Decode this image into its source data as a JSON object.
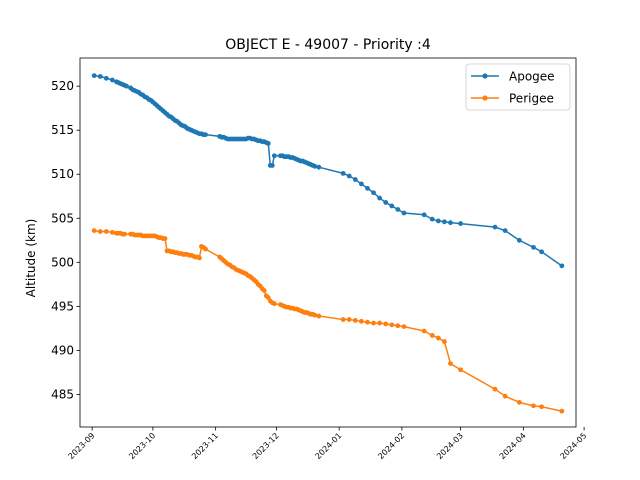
{
  "chart_data": {
    "type": "line",
    "title": "OBJECT E - 49007 - Priority :4",
    "xlabel": "",
    "ylabel": "Altitude (km)",
    "ylim": [
      481.3,
      523.2
    ],
    "xlim": [
      "2023-08-26",
      "2024-04-27"
    ],
    "grid": false,
    "legend_position": "top-right",
    "x_ticks": [
      "2023-09",
      "2023-10",
      "2023-11",
      "2023-12",
      "2024-01",
      "2024-02",
      "2024-03",
      "2024-04",
      "2024-05"
    ],
    "y_ticks": [
      485,
      490,
      495,
      500,
      505,
      510,
      515,
      520
    ],
    "series": [
      {
        "name": "Apogee",
        "color": "#1f77b4",
        "x": [
          "2023-09-02",
          "2023-09-05",
          "2023-09-08",
          "2023-09-11",
          "2023-09-13",
          "2023-09-14",
          "2023-09-15",
          "2023-09-16",
          "2023-09-17",
          "2023-09-18",
          "2023-09-20",
          "2023-09-21",
          "2023-09-22",
          "2023-09-23",
          "2023-09-24",
          "2023-09-25",
          "2023-09-26",
          "2023-09-27",
          "2023-09-28",
          "2023-09-29",
          "2023-09-30",
          "2023-10-01",
          "2023-10-02",
          "2023-10-03",
          "2023-10-04",
          "2023-10-05",
          "2023-10-06",
          "2023-10-07",
          "2023-10-08",
          "2023-10-09",
          "2023-10-10",
          "2023-10-11",
          "2023-10-12",
          "2023-10-13",
          "2023-10-14",
          "2023-10-15",
          "2023-10-16",
          "2023-10-17",
          "2023-10-18",
          "2023-10-19",
          "2023-10-20",
          "2023-10-21",
          "2023-10-22",
          "2023-10-23",
          "2023-10-24",
          "2023-10-25",
          "2023-10-26",
          "2023-10-27",
          "2023-11-03",
          "2023-11-04",
          "2023-11-05",
          "2023-11-06",
          "2023-11-07",
          "2023-11-08",
          "2023-11-09",
          "2023-11-10",
          "2023-11-11",
          "2023-11-12",
          "2023-11-13",
          "2023-11-14",
          "2023-11-15",
          "2023-11-16",
          "2023-11-17",
          "2023-11-18",
          "2023-11-19",
          "2023-11-20",
          "2023-11-21",
          "2023-11-22",
          "2023-11-23",
          "2023-11-24",
          "2023-11-25",
          "2023-11-26",
          "2023-11-27",
          "2023-11-28",
          "2023-11-29",
          "2023-11-30",
          "2023-12-03",
          "2023-12-04",
          "2023-12-05",
          "2023-12-06",
          "2023-12-07",
          "2023-12-08",
          "2023-12-09",
          "2023-12-10",
          "2023-12-11",
          "2023-12-12",
          "2023-12-13",
          "2023-12-14",
          "2023-12-15",
          "2023-12-16",
          "2023-12-17",
          "2023-12-18",
          "2023-12-19",
          "2023-12-20",
          "2023-12-22",
          "2024-01-03",
          "2024-01-06",
          "2024-01-09",
          "2024-01-12",
          "2024-01-15",
          "2024-01-18",
          "2024-01-21",
          "2024-01-24",
          "2024-01-27",
          "2024-01-30",
          "2024-02-02",
          "2024-02-12",
          "2024-02-16",
          "2024-02-19",
          "2024-02-22",
          "2024-02-25",
          "2024-03-01",
          "2024-03-18",
          "2024-03-23",
          "2024-03-30",
          "2024-04-06",
          "2024-04-10",
          "2024-04-20"
        ],
        "y": [
          521.2,
          521.1,
          520.9,
          520.7,
          520.5,
          520.4,
          520.3,
          520.2,
          520.1,
          520.0,
          519.8,
          519.6,
          519.5,
          519.4,
          519.3,
          519.1,
          519.0,
          518.8,
          518.7,
          518.5,
          518.4,
          518.2,
          518.0,
          517.8,
          517.6,
          517.4,
          517.2,
          517.0,
          516.8,
          516.6,
          516.5,
          516.3,
          516.1,
          516.0,
          515.8,
          515.6,
          515.5,
          515.4,
          515.2,
          515.1,
          515.0,
          514.9,
          514.8,
          514.7,
          514.6,
          514.6,
          514.5,
          514.5,
          514.3,
          514.2,
          514.2,
          514.1,
          514.0,
          514.0,
          514.0,
          514.0,
          514.0,
          514.0,
          514.0,
          514.0,
          514.0,
          514.0,
          514.1,
          514.1,
          514.0,
          514.0,
          513.9,
          513.8,
          513.8,
          513.7,
          513.7,
          513.6,
          513.5,
          511.0,
          511.0,
          512.1,
          512.1,
          512.1,
          512.0,
          512.0,
          512.0,
          511.9,
          511.9,
          511.8,
          511.7,
          511.6,
          511.5,
          511.5,
          511.4,
          511.3,
          511.2,
          511.1,
          511.0,
          510.9,
          510.8,
          510.1,
          509.8,
          509.4,
          508.9,
          508.4,
          507.9,
          507.3,
          506.8,
          506.4,
          506.0,
          505.6,
          505.4,
          504.9,
          504.7,
          504.6,
          504.5,
          504.4,
          504.0,
          503.6,
          502.5,
          501.7,
          501.2,
          499.6
        ]
      },
      {
        "name": "Perigee",
        "color": "#ff7f0e",
        "x": [
          "2023-09-02",
          "2023-09-05",
          "2023-09-08",
          "2023-09-11",
          "2023-09-13",
          "2023-09-14",
          "2023-09-15",
          "2023-09-16",
          "2023-09-17",
          "2023-09-20",
          "2023-09-21",
          "2023-09-22",
          "2023-09-23",
          "2023-09-24",
          "2023-09-25",
          "2023-09-26",
          "2023-09-27",
          "2023-09-28",
          "2023-09-29",
          "2023-09-30",
          "2023-10-01",
          "2023-10-02",
          "2023-10-03",
          "2023-10-04",
          "2023-10-05",
          "2023-10-06",
          "2023-10-07",
          "2023-10-08",
          "2023-10-09",
          "2023-10-10",
          "2023-10-11",
          "2023-10-12",
          "2023-10-13",
          "2023-10-14",
          "2023-10-15",
          "2023-10-16",
          "2023-10-17",
          "2023-10-18",
          "2023-10-19",
          "2023-10-20",
          "2023-10-21",
          "2023-10-22",
          "2023-10-23",
          "2023-10-24",
          "2023-10-25",
          "2023-10-26",
          "2023-10-27",
          "2023-11-03",
          "2023-11-04",
          "2023-11-05",
          "2023-11-06",
          "2023-11-07",
          "2023-11-08",
          "2023-11-09",
          "2023-11-10",
          "2023-11-11",
          "2023-11-12",
          "2023-11-13",
          "2023-11-14",
          "2023-11-15",
          "2023-11-16",
          "2023-11-17",
          "2023-11-18",
          "2023-11-19",
          "2023-11-20",
          "2023-11-21",
          "2023-11-22",
          "2023-11-23",
          "2023-11-24",
          "2023-11-25",
          "2023-11-26",
          "2023-11-27",
          "2023-11-28",
          "2023-11-29",
          "2023-11-30",
          "2023-12-03",
          "2023-12-04",
          "2023-12-05",
          "2023-12-06",
          "2023-12-07",
          "2023-12-08",
          "2023-12-09",
          "2023-12-10",
          "2023-12-11",
          "2023-12-12",
          "2023-12-13",
          "2023-12-14",
          "2023-12-15",
          "2023-12-16",
          "2023-12-17",
          "2023-12-18",
          "2023-12-19",
          "2023-12-20",
          "2023-12-22",
          "2024-01-03",
          "2024-01-06",
          "2024-01-09",
          "2024-01-12",
          "2024-01-15",
          "2024-01-18",
          "2024-01-21",
          "2024-01-24",
          "2024-01-27",
          "2024-01-30",
          "2024-02-02",
          "2024-02-12",
          "2024-02-16",
          "2024-02-19",
          "2024-02-22",
          "2024-02-25",
          "2024-03-01",
          "2024-03-18",
          "2024-03-23",
          "2024-03-30",
          "2024-04-06",
          "2024-04-10",
          "2024-04-20"
        ],
        "y": [
          503.6,
          503.5,
          503.5,
          503.4,
          503.3,
          503.3,
          503.3,
          503.2,
          503.2,
          503.2,
          503.2,
          503.1,
          503.1,
          503.1,
          503.1,
          503.0,
          503.0,
          503.0,
          503.0,
          503.0,
          503.0,
          503.0,
          502.9,
          502.8,
          502.8,
          502.7,
          502.7,
          501.3,
          501.3,
          501.2,
          501.2,
          501.1,
          501.1,
          501.0,
          501.0,
          500.9,
          500.9,
          500.9,
          500.8,
          500.8,
          500.7,
          500.6,
          500.6,
          500.5,
          501.8,
          501.7,
          501.5,
          500.6,
          500.4,
          500.2,
          500.0,
          499.8,
          499.7,
          499.5,
          499.4,
          499.2,
          499.1,
          499.0,
          498.9,
          498.8,
          498.7,
          498.5,
          498.4,
          498.2,
          498.0,
          497.8,
          497.5,
          497.3,
          497.0,
          496.8,
          496.2,
          496.0,
          495.6,
          495.4,
          495.3,
          495.2,
          495.1,
          495.0,
          494.9,
          494.9,
          494.8,
          494.8,
          494.7,
          494.7,
          494.6,
          494.5,
          494.4,
          494.3,
          494.3,
          494.2,
          494.1,
          494.1,
          494.0,
          493.9,
          493.5,
          493.5,
          493.4,
          493.3,
          493.2,
          493.1,
          493.1,
          493.0,
          492.9,
          492.8,
          492.7,
          492.2,
          491.7,
          491.4,
          491.0,
          488.5,
          487.8,
          485.6,
          484.8,
          484.1,
          483.7,
          483.6,
          483.1
        ]
      }
    ]
  }
}
